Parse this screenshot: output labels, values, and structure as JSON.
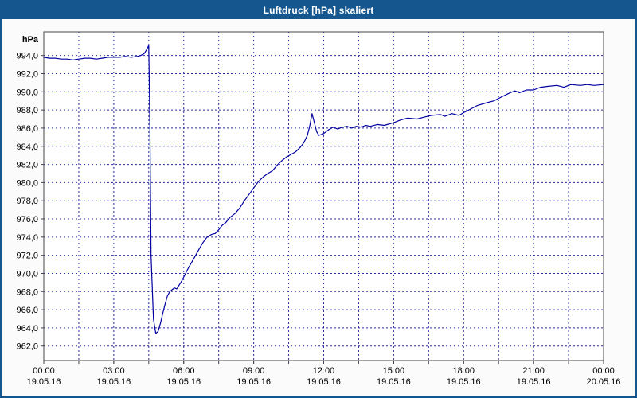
{
  "window": {
    "title": "Luftdruck [hPa] skaliert"
  },
  "chart_data": {
    "type": "line",
    "title": "Luftdruck [hPa] skaliert",
    "ylabel": "hPa",
    "xlabel": "",
    "ylim": [
      962,
      994
    ],
    "ylim_draw": [
      960.4,
      996.6
    ],
    "xlim": [
      0,
      24
    ],
    "grid": true,
    "y_tick_step": 2,
    "y_ticks": [
      962,
      964,
      966,
      968,
      970,
      972,
      974,
      976,
      978,
      980,
      982,
      984,
      986,
      988,
      990,
      992,
      994
    ],
    "x_grid_step_hours": 1.5,
    "x_ticks": [
      {
        "hour": 0,
        "time": "00:00",
        "date": "19.05.16"
      },
      {
        "hour": 3,
        "time": "03:00",
        "date": "19.05.16"
      },
      {
        "hour": 6,
        "time": "06:00",
        "date": "19.05.16"
      },
      {
        "hour": 9,
        "time": "09:00",
        "date": "19.05.16"
      },
      {
        "hour": 12,
        "time": "12:00",
        "date": "19.05.16"
      },
      {
        "hour": 15,
        "time": "15:00",
        "date": "19.05.16"
      },
      {
        "hour": 18,
        "time": "18:00",
        "date": "19.05.16"
      },
      {
        "hour": 21,
        "time": "21:00",
        "date": "19.05.16"
      },
      {
        "hour": 24,
        "time": "00:00",
        "date": "20.05.16"
      }
    ],
    "colors": {
      "titlebar": "#15568e",
      "line": "#0000a0",
      "grid": "#2b2ba6",
      "axis": "#444444",
      "background": "#fbfbfb",
      "plot_background": "#ffffff"
    },
    "series": [
      {
        "name": "Luftdruck",
        "points": [
          [
            0,
            993.8
          ],
          [
            0.25,
            993.7
          ],
          [
            0.5,
            993.7
          ],
          [
            0.75,
            993.6
          ],
          [
            1,
            993.6
          ],
          [
            1.25,
            993.5
          ],
          [
            1.5,
            993.6
          ],
          [
            1.75,
            993.7
          ],
          [
            2,
            993.7
          ],
          [
            2.25,
            993.6
          ],
          [
            2.5,
            993.7
          ],
          [
            2.75,
            993.8
          ],
          [
            3,
            993.8
          ],
          [
            3.25,
            993.8
          ],
          [
            3.5,
            993.9
          ],
          [
            3.75,
            993.8
          ],
          [
            4,
            993.9
          ],
          [
            4.15,
            994.0
          ],
          [
            4.3,
            994.2
          ],
          [
            4.4,
            994.6
          ],
          [
            4.5,
            995.1
          ],
          [
            4.55,
            986.0
          ],
          [
            4.6,
            972.0
          ],
          [
            4.7,
            965.0
          ],
          [
            4.8,
            963.4
          ],
          [
            4.9,
            963.6
          ],
          [
            5,
            964.5
          ],
          [
            5.1,
            965.6
          ],
          [
            5.2,
            966.6
          ],
          [
            5.3,
            967.5
          ],
          [
            5.4,
            968.0
          ],
          [
            5.5,
            968.2
          ],
          [
            5.6,
            968.4
          ],
          [
            5.7,
            968.3
          ],
          [
            5.8,
            968.7
          ],
          [
            5.9,
            969.1
          ],
          [
            6,
            969.6
          ],
          [
            6.2,
            970.6
          ],
          [
            6.4,
            971.5
          ],
          [
            6.6,
            972.4
          ],
          [
            6.8,
            973.3
          ],
          [
            7,
            974.0
          ],
          [
            7.2,
            974.3
          ],
          [
            7.35,
            974.4
          ],
          [
            7.5,
            974.8
          ],
          [
            7.65,
            975.3
          ],
          [
            7.8,
            975.6
          ],
          [
            8,
            976.2
          ],
          [
            8.2,
            976.6
          ],
          [
            8.4,
            977.2
          ],
          [
            8.6,
            978.0
          ],
          [
            8.8,
            978.7
          ],
          [
            9,
            979.4
          ],
          [
            9.2,
            980.1
          ],
          [
            9.4,
            980.6
          ],
          [
            9.6,
            981.0
          ],
          [
            9.8,
            981.3
          ],
          [
            10,
            981.9
          ],
          [
            10.2,
            982.4
          ],
          [
            10.4,
            982.8
          ],
          [
            10.6,
            983.1
          ],
          [
            10.8,
            983.4
          ],
          [
            11,
            983.9
          ],
          [
            11.15,
            984.4
          ],
          [
            11.3,
            985.2
          ],
          [
            11.4,
            986.2
          ],
          [
            11.5,
            987.6
          ],
          [
            11.6,
            986.6
          ],
          [
            11.7,
            985.6
          ],
          [
            11.8,
            985.2
          ],
          [
            11.9,
            985.3
          ],
          [
            12,
            985.4
          ],
          [
            12.2,
            985.8
          ],
          [
            12.4,
            986.1
          ],
          [
            12.6,
            985.9
          ],
          [
            12.8,
            986.1
          ],
          [
            13,
            986.2
          ],
          [
            13.2,
            986.0
          ],
          [
            13.4,
            986.2
          ],
          [
            13.6,
            986.1
          ],
          [
            13.8,
            986.3
          ],
          [
            14,
            986.2
          ],
          [
            14.3,
            986.4
          ],
          [
            14.6,
            986.3
          ],
          [
            15,
            986.6
          ],
          [
            15.3,
            986.9
          ],
          [
            15.6,
            987.1
          ],
          [
            16,
            987.0
          ],
          [
            16.3,
            987.2
          ],
          [
            16.6,
            987.4
          ],
          [
            17,
            987.5
          ],
          [
            17.2,
            987.3
          ],
          [
            17.5,
            987.6
          ],
          [
            17.8,
            987.4
          ],
          [
            18,
            987.7
          ],
          [
            18.3,
            988.1
          ],
          [
            18.6,
            988.5
          ],
          [
            19,
            988.8
          ],
          [
            19.3,
            989.0
          ],
          [
            19.6,
            989.4
          ],
          [
            20,
            989.9
          ],
          [
            20.2,
            990.1
          ],
          [
            20.4,
            989.9
          ],
          [
            20.7,
            990.2
          ],
          [
            21,
            990.2
          ],
          [
            21.3,
            990.5
          ],
          [
            21.6,
            990.6
          ],
          [
            22,
            990.7
          ],
          [
            22.3,
            990.5
          ],
          [
            22.6,
            990.8
          ],
          [
            23,
            990.7
          ],
          [
            23.3,
            990.8
          ],
          [
            23.6,
            990.7
          ],
          [
            24,
            990.8
          ]
        ]
      }
    ]
  }
}
